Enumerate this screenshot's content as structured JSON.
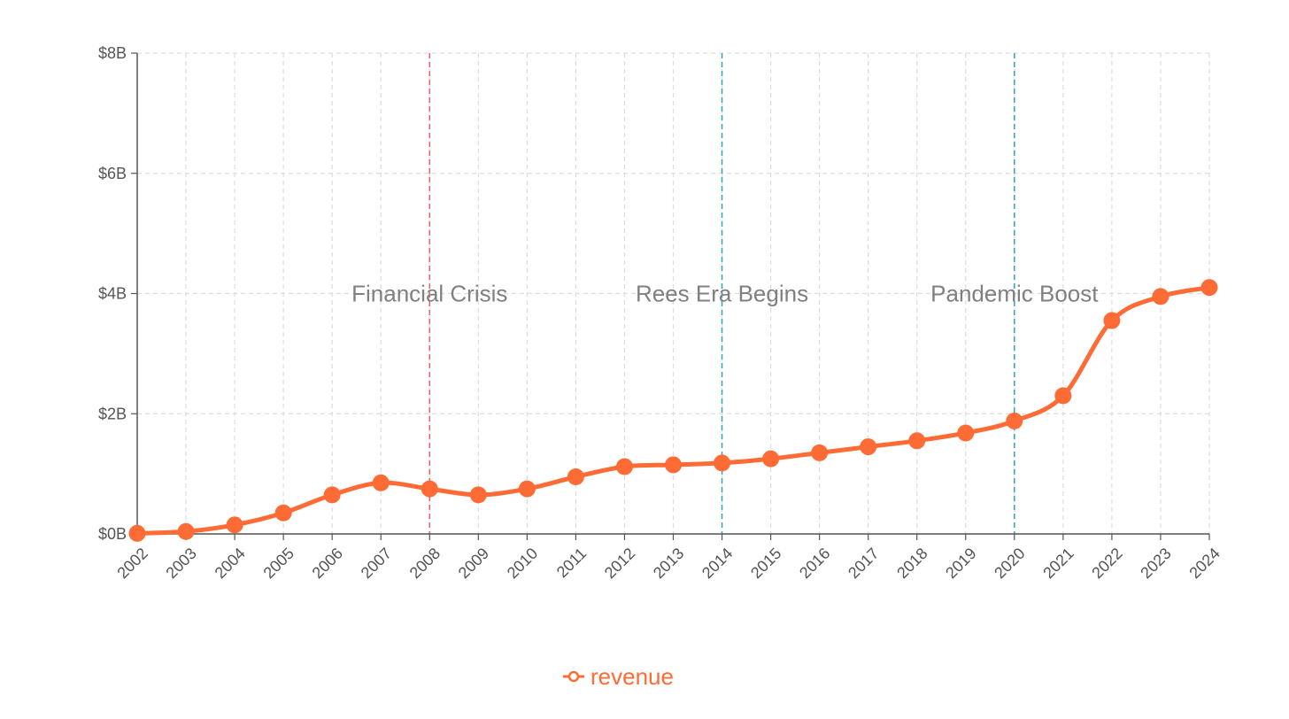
{
  "chart_data": {
    "type": "line",
    "title": "",
    "xlabel": "",
    "ylabel": "",
    "x": [
      "2002",
      "2003",
      "2004",
      "2005",
      "2006",
      "2007",
      "2008",
      "2009",
      "2010",
      "2011",
      "2012",
      "2013",
      "2014",
      "2015",
      "2016",
      "2017",
      "2018",
      "2019",
      "2020",
      "2021",
      "2022",
      "2023",
      "2024"
    ],
    "ylim": [
      0,
      8
    ],
    "yticks": [
      0,
      2,
      4,
      6,
      8
    ],
    "ytick_labels": [
      "$0B",
      "$2B",
      "$4B",
      "$6B",
      "$8B"
    ],
    "grid": true,
    "legend_position": "bottom-center",
    "series": [
      {
        "name": "revenue",
        "color": "#FF6B35",
        "values": [
          0.01,
          0.04,
          0.15,
          0.35,
          0.65,
          0.85,
          0.75,
          0.65,
          0.75,
          0.95,
          1.12,
          1.15,
          1.18,
          1.25,
          1.35,
          1.45,
          1.55,
          1.68,
          1.88,
          2.3,
          3.55,
          3.95,
          4.1
        ]
      }
    ],
    "annotations": [
      {
        "x": "2008",
        "label": "Financial Crisis",
        "color": "#E8616D"
      },
      {
        "x": "2014",
        "label": "Rees Era Begins",
        "color": "#2AA8B8"
      },
      {
        "x": "2020",
        "label": "Pandemic Boost",
        "color": "#2AA8B8"
      }
    ]
  },
  "colors": {
    "grid": "#DDDDDD",
    "axis": "#555555",
    "annotation_text": "#808080"
  }
}
